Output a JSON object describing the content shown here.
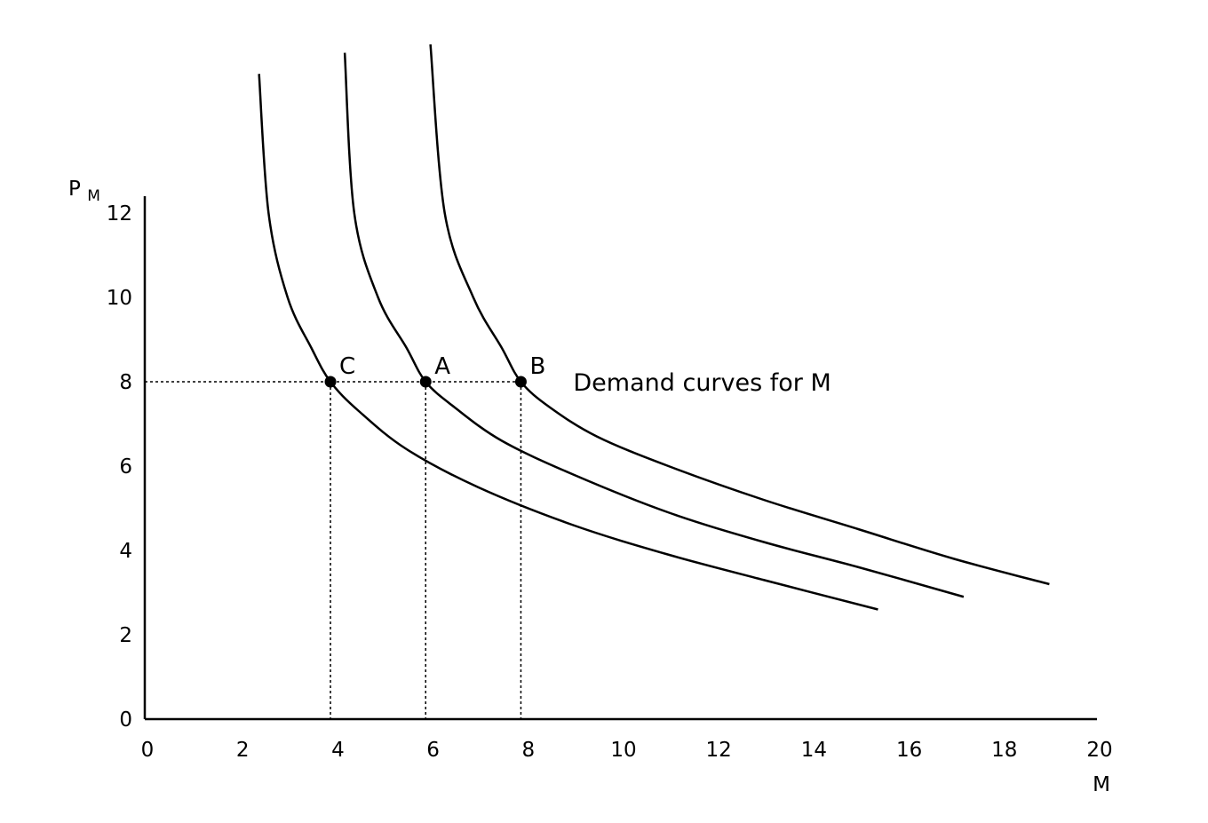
{
  "chart_data": {
    "type": "line",
    "xlabel": "M",
    "ylabel": {
      "main": "P",
      "subscript": "M"
    },
    "xlim": [
      0,
      20
    ],
    "ylim": [
      0,
      12
    ],
    "xticks": [
      "0",
      "2",
      "4",
      "6",
      "8",
      "10",
      "12",
      "14",
      "16",
      "18",
      "20"
    ],
    "yticks": [
      "0",
      "2",
      "4",
      "6",
      "8",
      "10",
      "12"
    ],
    "grid": false,
    "series": [
      {
        "x": [
          2.4,
          2.6,
          3.0,
          3.5,
          3.9,
          4.5,
          5.5,
          7.0,
          9.0,
          11.0,
          13.0,
          15.4
        ],
        "y": [
          15.3,
          12.0,
          10.0,
          8.8,
          8.0,
          7.3,
          6.4,
          5.5,
          4.6,
          3.9,
          3.3,
          2.6
        ]
      },
      {
        "x": [
          4.2,
          4.4,
          4.9,
          5.5,
          5.9,
          6.5,
          7.5,
          9.0,
          11.0,
          13.0,
          15.0,
          17.2
        ],
        "y": [
          15.8,
          12.0,
          10.0,
          8.8,
          8.0,
          7.4,
          6.6,
          5.8,
          4.9,
          4.2,
          3.6,
          2.9
        ]
      },
      {
        "x": [
          6.0,
          6.3,
          6.9,
          7.5,
          7.9,
          8.5,
          9.5,
          11.0,
          13.0,
          15.0,
          17.0,
          19.0
        ],
        "y": [
          16.0,
          12.0,
          10.0,
          8.8,
          8.0,
          7.4,
          6.7,
          6.0,
          5.2,
          4.5,
          3.8,
          3.2
        ]
      }
    ],
    "points": [
      {
        "label": "C",
        "x": 3.9,
        "y": 8
      },
      {
        "label": "A",
        "x": 5.9,
        "y": 8
      },
      {
        "label": "B",
        "x": 7.9,
        "y": 8
      }
    ],
    "reference_line_y": 8,
    "annotations": [
      {
        "text": "Demand curves for M",
        "x": 9,
        "y": 8
      }
    ]
  }
}
